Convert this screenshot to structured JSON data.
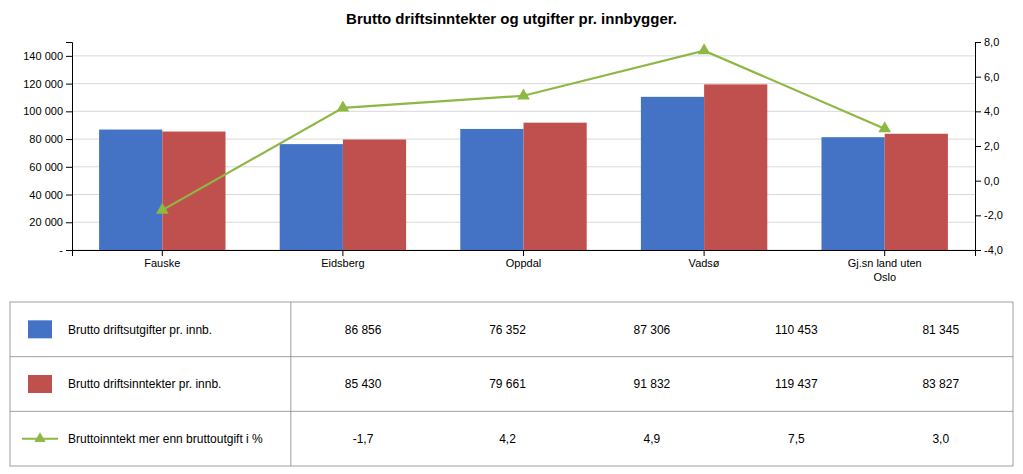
{
  "chart_data": {
    "type": "bar",
    "title": "Brutto driftsinntekter og utgifter pr. innbygger.",
    "categories": [
      "Fauske",
      "Eidsberg",
      "Oppdal",
      "Vadsø",
      "Gj.sn land uten\nOslo"
    ],
    "series": [
      {
        "name": "Brutto driftsutgifter pr. innb.",
        "color": "#4472C4",
        "values": [
          86856,
          76352,
          87306,
          110453,
          81345
        ],
        "value_labels": [
          "86 856",
          "76 352",
          "87 306",
          "110 453",
          "81 345"
        ]
      },
      {
        "name": "Brutto driftsinntekter pr. innb.",
        "color": "#C0504D",
        "values": [
          85430,
          79661,
          91832,
          119437,
          83827
        ],
        "value_labels": [
          "85 430",
          "79 661",
          "91 832",
          "119 437",
          "83 827"
        ]
      },
      {
        "name": "Bruttoinntekt mer enn bruttoutgift i %",
        "type": "line",
        "axis": "y2",
        "color": "#8DB843",
        "marker": "triangle",
        "values": [
          -1.7,
          4.2,
          4.9,
          7.5,
          3.0
        ],
        "value_labels": [
          "-1,7",
          "4,2",
          "4,9",
          "7,5",
          "3,0"
        ]
      }
    ],
    "ylim": [
      0,
      150000
    ],
    "yticks": [
      {
        "value": 0,
        "label": "-"
      },
      {
        "value": 20000,
        "label": "20 000"
      },
      {
        "value": 40000,
        "label": "40 000"
      },
      {
        "value": 60000,
        "label": "60 000"
      },
      {
        "value": 80000,
        "label": "80 000"
      },
      {
        "value": 100000,
        "label": "100 000"
      },
      {
        "value": 120000,
        "label": "120 000"
      },
      {
        "value": 140000,
        "label": "140 000"
      }
    ],
    "y2lim": [
      -4.0,
      8.0
    ],
    "y2ticks": [
      {
        "value": -4.0,
        "label": "-4,0"
      },
      {
        "value": -2.0,
        "label": "-2,0"
      },
      {
        "value": 0.0,
        "label": "0,0"
      },
      {
        "value": 2.0,
        "label": "2,0"
      },
      {
        "value": 4.0,
        "label": "4,0"
      },
      {
        "value": 6.0,
        "label": "6,0"
      },
      {
        "value": 8.0,
        "label": "8,0"
      }
    ],
    "grid": true,
    "legend": "bottom"
  }
}
